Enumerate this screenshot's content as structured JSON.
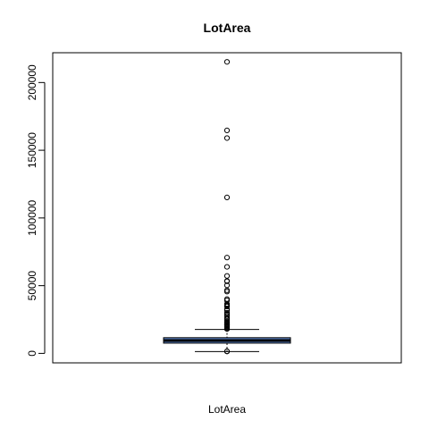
{
  "chart_data": {
    "type": "boxplot",
    "title": "LotArea",
    "xlabel": "LotArea",
    "ylabel": "",
    "ylim": [
      -7000,
      222000
    ],
    "yticks": [
      0,
      50000,
      100000,
      150000,
      200000
    ],
    "ytick_labels": [
      "0",
      "50000",
      "100000",
      "150000",
      "200000"
    ],
    "grid": false,
    "legend": "none",
    "box": {
      "whisker_low": 1300,
      "q1": 7550,
      "median": 9480,
      "q3": 11600,
      "whisker_high": 17700
    },
    "outliers": [
      215245,
      164660,
      159000,
      115149,
      70761,
      63887,
      57200,
      53504,
      53227,
      50271,
      46589,
      45600,
      40094,
      39104,
      36500,
      35760,
      35133,
      34650,
      32668,
      31770,
      29959,
      28698,
      27650,
      26178,
      25419,
      24090,
      23257,
      22950,
      22420,
      21872,
      21384,
      20781,
      20431,
      19900,
      19378,
      18450,
      18000,
      1491,
      1477
    ],
    "colors": {
      "box_fill": "#5b84c9",
      "stroke": "#000000"
    }
  }
}
